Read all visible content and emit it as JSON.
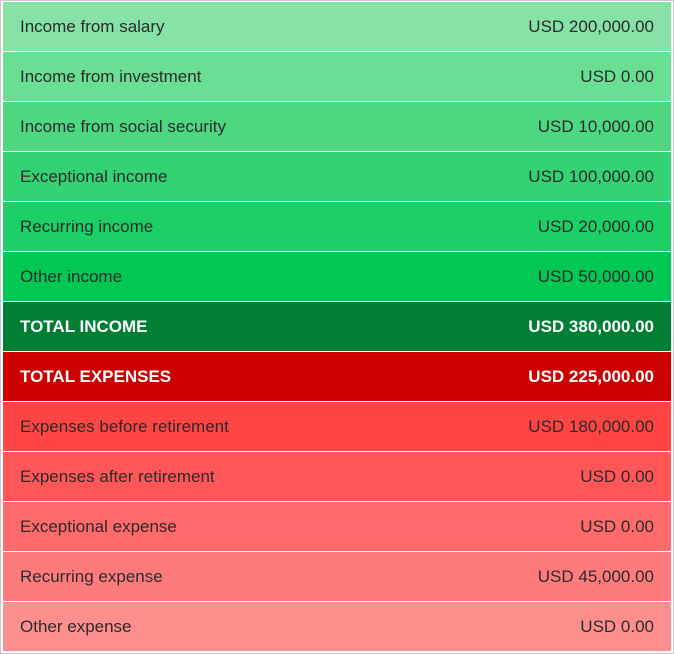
{
  "income": {
    "salary": {
      "label": "Income from salary",
      "value": "USD 200,000.00"
    },
    "investment": {
      "label": "Income from investment",
      "value": "USD 0.00"
    },
    "social_security": {
      "label": "Income from social security",
      "value": "USD 10,000.00"
    },
    "exceptional": {
      "label": "Exceptional income",
      "value": "USD 100,000.00"
    },
    "recurring": {
      "label": "Recurring income",
      "value": "USD 20,000.00"
    },
    "other": {
      "label": "Other income",
      "value": "USD 50,000.00"
    },
    "total": {
      "label": "TOTAL INCOME",
      "value": "USD 380,000.00"
    }
  },
  "expenses": {
    "total": {
      "label": "TOTAL EXPENSES",
      "value": "USD 225,000.00"
    },
    "before_retirement": {
      "label": "Expenses before retirement",
      "value": "USD 180,000.00"
    },
    "after_retirement": {
      "label": "Expenses after retirement",
      "value": "USD 0.00"
    },
    "exceptional": {
      "label": "Exceptional expense",
      "value": "USD 0.00"
    },
    "recurring": {
      "label": "Recurring expense",
      "value": "USD 45,000.00"
    },
    "other": {
      "label": "Other expense",
      "value": "USD 0.00"
    }
  },
  "colors": {
    "income_rows": [
      "#86e2a6",
      "#6ade93",
      "#4ed781",
      "#33d373",
      "#1cd065",
      "#00c853"
    ],
    "total_income": "#007e33",
    "total_expenses": "#cc0000",
    "expense_rows": [
      "#ff4444",
      "#ff5757",
      "#ff6a6a",
      "#ff7b7b",
      "#ff8e8e"
    ]
  }
}
